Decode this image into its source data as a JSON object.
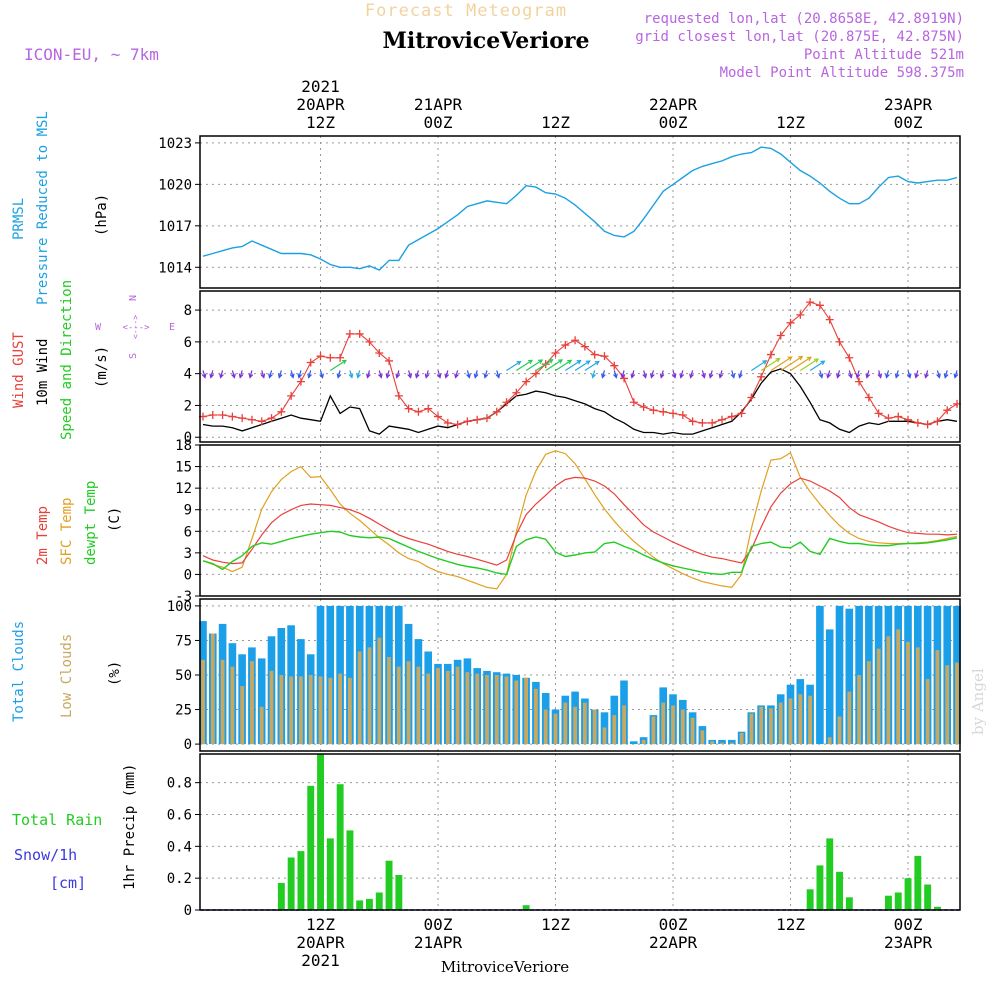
{
  "header": {
    "super_title": "Forecast Meteogram",
    "station": "MitroviceVeriore",
    "model": "ICON-EU, ~ 7km",
    "requested": "requested lon,lat (20.8658E, 42.8919N)",
    "closest": "grid closest lon,lat (20.875E, 42.875N)",
    "point_alt": "Point Altitude 521m",
    "model_alt": "Model Point Altitude 598.375m",
    "bottom_station": "MitroviceVeriore",
    "watermark": "by Angel"
  },
  "time_axis": {
    "top": [
      {
        "idx": 12,
        "lines": [
          "2021",
          "20APR",
          "12Z"
        ]
      },
      {
        "idx": 24,
        "lines": [
          "21APR",
          "00Z"
        ]
      },
      {
        "idx": 36,
        "lines": [
          "12Z"
        ]
      },
      {
        "idx": 48,
        "lines": [
          "22APR",
          "00Z"
        ]
      },
      {
        "idx": 60,
        "lines": [
          "12Z"
        ]
      },
      {
        "idx": 72,
        "lines": [
          "23APR",
          "00Z"
        ]
      }
    ],
    "bottom": [
      {
        "idx": 12,
        "lines": [
          "12Z",
          "20APR",
          "2021"
        ]
      },
      {
        "idx": 24,
        "lines": [
          "00Z",
          "21APR"
        ]
      },
      {
        "idx": 36,
        "lines": [
          "12Z"
        ]
      },
      {
        "idx": 48,
        "lines": [
          "00Z",
          "22APR"
        ]
      },
      {
        "idx": 60,
        "lines": [
          "12Z"
        ]
      },
      {
        "idx": 72,
        "lines": [
          "00Z",
          "23APR"
        ]
      }
    ]
  },
  "labels": {
    "pressure": [
      "PRMSL",
      "Pressure Reduced to MSL",
      "(hPa)"
    ],
    "wind": [
      "Wind GUST",
      "10m Wind",
      "Speed and Direction",
      "(m/s)"
    ],
    "compass": {
      "n": "N",
      "s": "S",
      "w": "W",
      "e": "E",
      "ns": "<--->",
      "we": "<--->"
    },
    "temp": [
      "2m Temp",
      "SFC Temp",
      "dewpt Temp",
      "(C)"
    ],
    "cloud": [
      "Total Clouds",
      "Low Clouds",
      "(%)"
    ],
    "precip": [
      "Total  Rain",
      "Snow/1h",
      "[cm]",
      "1hr Precip (mm)"
    ]
  },
  "colors": {
    "pressure": "#1ba1e2",
    "gust": "#e8403a",
    "wind": "#000000",
    "t2m": "#e8403a",
    "sfc": "#e0a020",
    "dew": "#22cc22",
    "total_cloud": "#1b9fe8",
    "low_cloud": "#c8a860",
    "rain": "#22cc22",
    "label_purple": "#b865e0",
    "snow_label": "#3a3adf"
  },
  "chart_data": [
    {
      "type": "line",
      "title": "PRMSL Pressure Reduced to MSL",
      "ylabel": "(hPa)",
      "ylim": [
        1012.5,
        1023.5
      ],
      "yticks": [
        1014,
        1017,
        1020,
        1023
      ],
      "x_hours_from_start": "0..77",
      "series": [
        {
          "name": "Pressure",
          "values": [
            1014.8,
            1015.0,
            1015.2,
            1015.4,
            1015.5,
            1015.9,
            1015.6,
            1015.3,
            1015.0,
            1015.0,
            1015.0,
            1014.9,
            1014.6,
            1014.2,
            1014.0,
            1014.0,
            1013.9,
            1014.1,
            1013.8,
            1014.5,
            1014.5,
            1015.6,
            1016.0,
            1016.4,
            1016.8,
            1017.3,
            1017.8,
            1018.4,
            1018.6,
            1018.8,
            1018.7,
            1018.6,
            1019.2,
            1019.9,
            1019.8,
            1019.4,
            1019.3,
            1019.0,
            1018.5,
            1017.9,
            1017.3,
            1016.6,
            1016.3,
            1016.2,
            1016.6,
            1017.5,
            1018.5,
            1019.5,
            1020.0,
            1020.5,
            1021.0,
            1021.3,
            1021.5,
            1021.7,
            1022.0,
            1022.2,
            1022.3,
            1022.7,
            1022.6,
            1022.2,
            1021.6,
            1021.0,
            1020.6,
            1020.1,
            1019.5,
            1019.0,
            1018.6,
            1018.6,
            1019.0,
            1019.8,
            1020.5,
            1020.6,
            1020.2,
            1020.1,
            1020.2,
            1020.3,
            1020.3,
            1020.5
          ]
        }
      ]
    },
    {
      "type": "line",
      "title": "Wind GUST / 10m Wind Speed and Direction",
      "ylabel": "(m/s)",
      "ylim": [
        -0.3,
        9.2
      ],
      "yticks": [
        0,
        2,
        4,
        6,
        8
      ],
      "series": [
        {
          "name": "Wind GUST",
          "values": [
            1.3,
            1.4,
            1.4,
            1.3,
            1.2,
            1.1,
            1.0,
            1.2,
            1.6,
            2.6,
            3.5,
            4.7,
            5.1,
            5.0,
            5.0,
            6.5,
            6.5,
            6.0,
            5.3,
            4.8,
            2.6,
            1.8,
            1.6,
            1.8,
            1.3,
            0.9,
            0.8,
            1.0,
            1.1,
            1.2,
            1.6,
            2.2,
            2.8,
            3.5,
            4.0,
            4.6,
            5.3,
            5.8,
            6.1,
            5.7,
            5.2,
            5.1,
            4.5,
            3.7,
            2.2,
            1.9,
            1.7,
            1.6,
            1.5,
            1.4,
            1.0,
            0.9,
            0.9,
            1.1,
            1.3,
            1.5,
            2.5,
            3.8,
            5.2,
            6.4,
            7.2,
            7.7,
            8.5,
            8.3,
            7.4,
            6.0,
            5.0,
            3.5,
            2.5,
            1.5,
            1.2,
            1.3,
            1.1,
            0.9,
            0.8,
            1.0,
            1.7,
            2.1
          ]
        },
        {
          "name": "10m Wind",
          "values": [
            0.8,
            0.7,
            0.7,
            0.6,
            0.4,
            0.6,
            0.8,
            1.0,
            1.2,
            1.4,
            1.2,
            1.1,
            1.0,
            2.6,
            1.5,
            1.9,
            1.8,
            0.4,
            0.2,
            0.7,
            0.6,
            0.5,
            0.3,
            0.5,
            0.7,
            0.6,
            0.8,
            1.0,
            1.1,
            1.2,
            1.6,
            2.1,
            2.6,
            2.7,
            2.9,
            2.8,
            2.6,
            2.5,
            2.3,
            2.1,
            1.8,
            1.6,
            1.2,
            0.9,
            0.5,
            0.3,
            0.3,
            0.2,
            0.3,
            0.2,
            0.2,
            0.4,
            0.6,
            0.8,
            1.0,
            1.6,
            2.4,
            3.4,
            4.1,
            4.3,
            4.0,
            3.2,
            2.2,
            1.1,
            0.9,
            0.5,
            0.3,
            0.7,
            0.9,
            0.8,
            1.0,
            1.0,
            1.0,
            0.9,
            0.8,
            1.0,
            1.1,
            1.0
          ]
        }
      ]
    },
    {
      "type": "line",
      "title": "2m Temp / SFC Temp / dewpt Temp",
      "ylabel": "(C)",
      "ylim": [
        -3,
        18
      ],
      "yticks": [
        -3,
        0,
        3,
        6,
        9,
        12,
        15,
        18
      ],
      "series": [
        {
          "name": "2m Temp",
          "values": [
            2.6,
            2.0,
            1.7,
            1.5,
            1.6,
            3.5,
            5.5,
            7.2,
            8.3,
            9.0,
            9.6,
            9.8,
            9.7,
            9.6,
            9.3,
            9.0,
            8.5,
            7.8,
            7.0,
            6.2,
            5.5,
            5.0,
            4.6,
            4.2,
            3.7,
            3.2,
            2.8,
            2.5,
            2.1,
            1.7,
            1.3,
            2.0,
            5.6,
            8.3,
            9.8,
            11.0,
            12.3,
            13.2,
            13.5,
            13.4,
            13.0,
            12.3,
            11.2,
            9.7,
            8.3,
            6.9,
            5.9,
            5.2,
            4.5,
            3.9,
            3.3,
            2.8,
            2.4,
            2.2,
            1.9,
            1.6,
            3.5,
            6.6,
            9.4,
            11.3,
            12.6,
            13.4,
            13.0,
            12.3,
            11.6,
            10.7,
            9.3,
            8.3,
            7.8,
            7.3,
            6.7,
            6.2,
            5.8,
            5.7,
            5.6,
            5.6,
            5.5,
            5.6
          ]
        },
        {
          "name": "SFC Temp",
          "values": [
            1.9,
            1.4,
            1.0,
            0.4,
            1.0,
            5.0,
            9.1,
            11.5,
            13.2,
            14.3,
            15.0,
            13.5,
            13.6,
            11.8,
            9.8,
            8.5,
            7.5,
            6.3,
            5.1,
            4.1,
            3.0,
            2.2,
            1.8,
            1.0,
            0.4,
            0.0,
            -0.3,
            -0.8,
            -1.3,
            -1.8,
            -2.0,
            0.0,
            6.0,
            11.0,
            14.4,
            16.7,
            17.2,
            16.8,
            15.4,
            13.3,
            11.1,
            9.1,
            7.4,
            5.9,
            4.6,
            3.5,
            2.4,
            1.5,
            0.8,
            0.1,
            -0.5,
            -1.0,
            -1.3,
            -1.6,
            -1.8,
            0.0,
            6.4,
            11.6,
            15.9,
            16.1,
            16.9,
            13.5,
            11.5,
            9.8,
            8.2,
            6.8,
            5.7,
            5.0,
            4.6,
            4.4,
            4.3,
            4.3,
            4.3,
            4.4,
            4.5,
            4.7,
            5.0,
            5.3
          ]
        },
        {
          "name": "dewpt Temp",
          "values": [
            1.9,
            1.5,
            0.7,
            1.8,
            2.6,
            3.9,
            4.4,
            4.2,
            4.6,
            5.0,
            5.3,
            5.6,
            5.8,
            6.0,
            5.9,
            5.4,
            5.2,
            5.1,
            5.2,
            5.0,
            4.4,
            3.8,
            3.2,
            2.7,
            2.2,
            1.8,
            1.4,
            1.1,
            0.9,
            0.6,
            0.2,
            0.0,
            3.9,
            4.8,
            5.2,
            4.9,
            3.1,
            2.5,
            2.7,
            3.0,
            3.1,
            4.3,
            4.5,
            3.9,
            3.4,
            2.7,
            2.1,
            1.6,
            1.2,
            0.9,
            0.6,
            0.3,
            0.1,
            0.0,
            0.3,
            0.3,
            3.9,
            4.3,
            4.5,
            3.8,
            3.7,
            4.5,
            3.2,
            2.8,
            5.0,
            4.6,
            4.3,
            4.3,
            4.1,
            4.0,
            4.0,
            4.2,
            4.3,
            4.3,
            4.4,
            4.6,
            4.8,
            5.1
          ]
        }
      ]
    },
    {
      "type": "bar",
      "title": "Total Clouds / Low Clouds",
      "ylabel": "(%)",
      "ylim": [
        -5,
        105
      ],
      "yticks": [
        0,
        25,
        50,
        75,
        100
      ],
      "series": [
        {
          "name": "Total Clouds",
          "values": [
            89,
            80,
            87,
            73,
            65,
            70,
            62,
            78,
            84,
            86,
            76,
            65,
            100,
            100,
            100,
            100,
            100,
            100,
            100,
            100,
            100,
            87,
            76,
            67,
            58,
            58,
            61,
            62,
            55,
            53,
            52,
            51,
            50,
            48,
            45,
            37,
            25,
            35,
            38,
            33,
            25,
            23,
            35,
            46,
            2,
            5,
            21,
            41,
            36,
            32,
            23,
            13,
            3,
            3,
            3,
            9,
            23,
            28,
            28,
            36,
            43,
            47,
            43,
            100,
            83,
            100,
            98,
            100,
            100,
            100,
            100,
            100,
            100,
            100,
            100,
            100,
            100,
            100
          ]
        },
        {
          "name": "Low Clouds",
          "values": [
            61,
            80,
            61,
            56,
            42,
            60,
            27,
            53,
            50,
            49,
            49,
            50,
            49,
            48,
            51,
            48,
            67,
            70,
            77,
            63,
            56,
            60,
            56,
            51,
            55,
            53,
            56,
            52,
            51,
            50,
            50,
            49,
            46,
            48,
            40,
            25,
            22,
            30,
            27,
            30,
            25,
            12,
            21,
            28,
            0,
            3,
            20,
            30,
            28,
            25,
            19,
            10,
            2,
            1,
            1,
            8,
            22,
            27,
            26,
            30,
            33,
            36,
            35,
            0,
            5,
            20,
            38,
            50,
            60,
            69,
            78,
            83,
            74,
            70,
            47,
            68,
            57,
            59
          ]
        }
      ]
    },
    {
      "type": "bar",
      "title": "1hr Precip",
      "ylabel": "1hr Precip (mm)",
      "ylim": [
        0,
        0.98
      ],
      "yticks": [
        0,
        0.2,
        0.4,
        0.6,
        0.8
      ],
      "series": [
        {
          "name": "Total Rain",
          "values": [
            0,
            0,
            0,
            0,
            0,
            0,
            0,
            0,
            0.17,
            0.33,
            0.37,
            0.78,
            0.98,
            0.45,
            0.79,
            0.5,
            0.06,
            0.07,
            0.11,
            0.31,
            0.22,
            0,
            0,
            0,
            0,
            0,
            0,
            0,
            0,
            0,
            0,
            0,
            0,
            0.03,
            0,
            0,
            0,
            0,
            0,
            0,
            0,
            0,
            0,
            0,
            0,
            0,
            0,
            0,
            0,
            0,
            0,
            0,
            0,
            0,
            0,
            0,
            0,
            0,
            0,
            0,
            0,
            0,
            0.13,
            0.28,
            0.45,
            0.24,
            0.08,
            0,
            0,
            0,
            0.09,
            0.11,
            0.2,
            0.34,
            0.16,
            0.02,
            0,
            0
          ]
        }
      ]
    }
  ]
}
